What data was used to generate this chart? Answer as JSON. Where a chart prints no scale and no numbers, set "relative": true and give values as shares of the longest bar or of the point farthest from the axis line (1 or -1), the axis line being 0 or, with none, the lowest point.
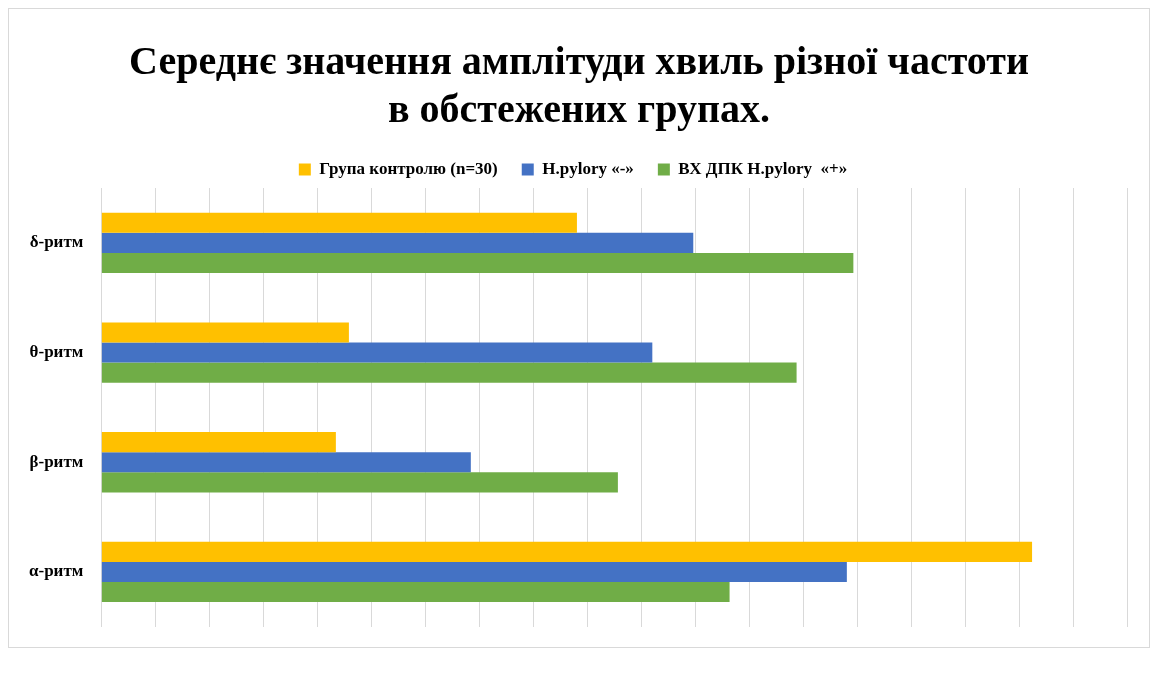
{
  "chart_data": {
    "type": "bar",
    "orientation": "horizontal",
    "relative": true,
    "title": "Середнє значення амплітуди хвиль різної частоти в обстежених групах.",
    "categories": [
      "δ-ритм",
      "θ-ритм",
      "β-ритм",
      "α-ритм"
    ],
    "series": [
      {
        "name": "Група контролю (n=30)",
        "color": "#ffc000",
        "values": [
          0.511,
          0.266,
          0.252,
          1
        ]
      },
      {
        "name": "H.pylory «-»",
        "color": "#4472c4",
        "values": [
          0.636,
          0.592,
          0.397,
          0.801
        ]
      },
      {
        "name": "ВХ ДПК H.pylory  «+»",
        "color": "#70ad47",
        "values": [
          0.808,
          0.747,
          0.555,
          0.675
        ]
      }
    ],
    "grid": "x",
    "legend": "top"
  }
}
